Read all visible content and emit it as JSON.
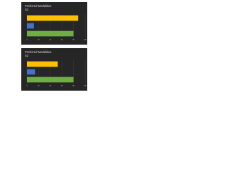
{
  "chart_data": [
    {
      "type": "bar",
      "horizontal": true,
      "title": "Preferred Modalities",
      "subtitle": "S1",
      "categories": [
        null,
        null,
        null
      ],
      "values": [
        80,
        12,
        88
      ],
      "colors": [
        "#70ad47",
        "#4472c4",
        "#ffc000"
      ],
      "xlim": [
        0,
        100
      ],
      "xticks": [
        0,
        20,
        40,
        60,
        80,
        100
      ],
      "grid": true
    },
    {
      "type": "bar",
      "horizontal": true,
      "title": "Preferred Modalities",
      "subtitle": "S2",
      "categories": [
        null,
        null,
        null
      ],
      "values": [
        80,
        14,
        53
      ],
      "colors": [
        "#70ad47",
        "#4472c4",
        "#ffc000"
      ],
      "xlim": [
        0,
        100
      ],
      "xticks": [
        0,
        20,
        40,
        60,
        80,
        100
      ],
      "grid": true
    }
  ]
}
